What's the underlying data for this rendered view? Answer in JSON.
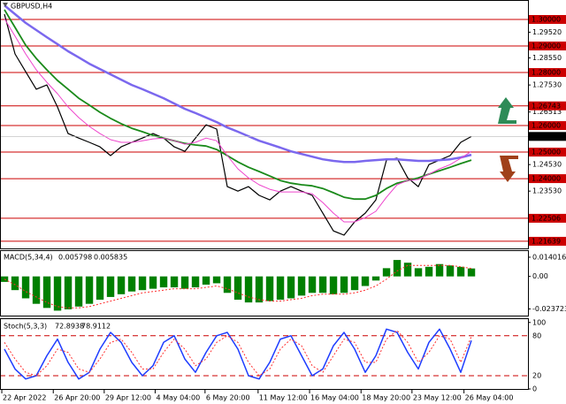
{
  "chart_data": [
    {
      "type": "line",
      "title": "GBPUSD,H4",
      "x": [
        0,
        1,
        2,
        3,
        4,
        5,
        6,
        7,
        8,
        9,
        10,
        11,
        12,
        13,
        14,
        15,
        16,
        17,
        18,
        19,
        20,
        21,
        22,
        23,
        24,
        25,
        26,
        27,
        28,
        29,
        30,
        31,
        32,
        33,
        34,
        35,
        36,
        37,
        38,
        39,
        40,
        41,
        42,
        43,
        44
      ],
      "xlim": [
        -0.42,
        49.33
      ],
      "xticks": [
        {
          "value": -0.25,
          "label": "22 Apr 2022"
        },
        {
          "value": 4.6,
          "label": "26 Apr 20:00"
        },
        {
          "value": 9.4,
          "label": "29 Apr 12:00"
        },
        {
          "value": 14.2,
          "label": "4 May 04:00"
        },
        {
          "value": 18.9,
          "label": "6 May 20:00"
        },
        {
          "value": 23.9,
          "label": "11 May 12:00"
        },
        {
          "value": 28.75,
          "label": "16 May 04:00"
        },
        {
          "value": 33.6,
          "label": "18 May 20:00"
        },
        {
          "value": 38.4,
          "label": "23 May 12:00"
        },
        {
          "value": 43.3,
          "label": "26 May 04:00"
        }
      ],
      "ylim": [
        1.2137,
        1.307
      ],
      "yticks": [
        {
          "value": 1.2952,
          "label": "1.29520"
        },
        {
          "value": 1.2855,
          "label": "1.28550"
        },
        {
          "value": 1.2753,
          "label": "1.27530"
        },
        {
          "value": 1.26513,
          "label": "1.26513"
        },
        {
          "value": 1.2453,
          "label": "1.24530"
        },
        {
          "value": 1.2353,
          "label": "1.23530"
        }
      ],
      "levels": [
        {
          "value": 1.3,
          "label": "1.30000"
        },
        {
          "value": 1.29,
          "label": "1.29000"
        },
        {
          "value": 1.28,
          "label": "1.28000"
        },
        {
          "value": 1.26743,
          "label": "1.26743"
        },
        {
          "value": 1.26,
          "label": "1.26000"
        },
        {
          "value": 1.25,
          "label": "1.25000"
        },
        {
          "value": 1.24,
          "label": "1.24000"
        },
        {
          "value": 1.22506,
          "label": "1.22506"
        },
        {
          "value": 1.21639,
          "label": "1.21639"
        }
      ],
      "level_color": "#cc0000",
      "current_price": 1.25591,
      "series": [
        {
          "color": "#000000",
          "width": 1.2,
          "values": [
            1.302,
            1.287,
            1.2803,
            1.2737,
            1.2753,
            1.267,
            1.257,
            1.2553,
            1.2537,
            1.252,
            1.2487,
            1.252,
            1.2537,
            1.2553,
            1.257,
            1.2553,
            1.252,
            1.2503,
            1.2553,
            1.2603,
            1.2587,
            1.237,
            1.2353,
            1.237,
            1.2337,
            1.232,
            1.2353,
            1.237,
            1.2353,
            1.2337,
            1.227,
            1.2203,
            1.2187,
            1.2237,
            1.227,
            1.232,
            1.247,
            1.2477,
            1.2403,
            1.237,
            1.2453,
            1.247,
            1.2487,
            1.2537,
            1.2559
          ]
        },
        {
          "color": "#7b68ee",
          "width": 2.5,
          "values": [
            1.3053,
            1.302,
            1.2987,
            1.296,
            1.2933,
            1.2907,
            1.288,
            1.2857,
            1.2833,
            1.2813,
            1.2793,
            1.2773,
            1.2753,
            1.2737,
            1.272,
            1.2703,
            1.2683,
            1.2663,
            1.2647,
            1.263,
            1.2613,
            1.2593,
            1.2577,
            1.256,
            1.2543,
            1.253,
            1.2517,
            1.2503,
            1.2493,
            1.2483,
            1.2473,
            1.2467,
            1.2463,
            1.2463,
            1.2467,
            1.247,
            1.2473,
            1.2473,
            1.247,
            1.2467,
            1.2467,
            1.247,
            1.2473,
            1.248,
            1.249
          ]
        },
        {
          "color": "#1a8a1a",
          "width": 1.8,
          "values": [
            1.3037,
            1.297,
            1.2903,
            1.2853,
            1.281,
            1.277,
            1.2737,
            1.2703,
            1.2677,
            1.265,
            1.2627,
            1.2607,
            1.259,
            1.2577,
            1.2563,
            1.2553,
            1.2543,
            1.2533,
            1.2527,
            1.2523,
            1.251,
            1.2487,
            1.2463,
            1.2443,
            1.2427,
            1.241,
            1.2393,
            1.2383,
            1.2377,
            1.2373,
            1.2363,
            1.2347,
            1.233,
            1.2323,
            1.2323,
            1.2337,
            1.2363,
            1.2383,
            1.2393,
            1.2403,
            1.2417,
            1.243,
            1.2443,
            1.2457,
            1.247
          ]
        },
        {
          "color": "#ee44cc",
          "width": 1,
          "values": [
            1.3003,
            1.2937,
            1.287,
            1.281,
            1.2763,
            1.272,
            1.267,
            1.263,
            1.2597,
            1.257,
            1.2547,
            1.2537,
            1.2537,
            1.2543,
            1.255,
            1.2553,
            1.2543,
            1.253,
            1.2537,
            1.2553,
            1.2543,
            1.2487,
            1.2437,
            1.2403,
            1.2377,
            1.236,
            1.235,
            1.235,
            1.235,
            1.2343,
            1.231,
            1.227,
            1.2237,
            1.2237,
            1.2253,
            1.2277,
            1.233,
            1.2377,
            1.2393,
            1.2397,
            1.2417,
            1.2437,
            1.2453,
            1.2477,
            1.2503
          ]
        }
      ]
    },
    {
      "type": "bar",
      "title": "MACD(5,34,4)",
      "last_values": [
        0.005798,
        0.005835
      ],
      "ylim": [
        -0.0286,
        0.0185
      ],
      "yticks": [
        0.014016,
        {
          "value": 0,
          "label": "0.00"
        },
        -0.023723
      ],
      "series": [
        {
          "kind": "bar",
          "color": "#008000",
          "values": [
            -0.004,
            -0.01,
            -0.016,
            -0.02,
            -0.023,
            -0.025,
            -0.024,
            -0.022,
            -0.02,
            -0.017,
            -0.015,
            -0.013,
            -0.011,
            -0.01,
            -0.009,
            -0.008,
            -0.008,
            -0.009,
            -0.008,
            -0.006,
            -0.005,
            -0.012,
            -0.017,
            -0.019,
            -0.019,
            -0.018,
            -0.017,
            -0.016,
            -0.014,
            -0.012,
            -0.012,
            -0.013,
            -0.012,
            -0.01,
            -0.007,
            -0.003,
            0.006,
            0.012,
            0.01,
            0.006,
            0.007,
            0.009,
            0.008,
            0.007,
            0.0058
          ]
        },
        {
          "kind": "line",
          "color": "#ff3030",
          "dash": true,
          "values": [
            -0.002,
            -0.006,
            -0.011,
            -0.015,
            -0.019,
            -0.022,
            -0.023,
            -0.023,
            -0.022,
            -0.02,
            -0.018,
            -0.016,
            -0.014,
            -0.012,
            -0.011,
            -0.01,
            -0.009,
            -0.009,
            -0.009,
            -0.008,
            -0.007,
            -0.009,
            -0.012,
            -0.015,
            -0.017,
            -0.018,
            -0.018,
            -0.017,
            -0.016,
            -0.014,
            -0.013,
            -0.013,
            -0.013,
            -0.012,
            -0.01,
            -0.007,
            -0.002,
            0.004,
            0.008,
            0.008,
            0.008,
            0.008,
            0.008,
            0.007,
            0.0058
          ]
        }
      ]
    },
    {
      "type": "line",
      "title": "Stoch(5,3,3)",
      "last_values": [
        72.8938,
        78.9112
      ],
      "ylim": [
        0,
        105
      ],
      "yticks": [
        100,
        0
      ],
      "levels": [
        80,
        20
      ],
      "level_color": "#cc0000",
      "series": [
        {
          "kind": "line",
          "color": "#1e3cff",
          "width": 1.5,
          "values": [
            60,
            30,
            15,
            20,
            50,
            75,
            40,
            15,
            25,
            60,
            85,
            70,
            40,
            20,
            35,
            70,
            80,
            45,
            25,
            55,
            80,
            85,
            60,
            20,
            15,
            40,
            75,
            80,
            50,
            20,
            30,
            65,
            85,
            60,
            25,
            50,
            90,
            85,
            55,
            30,
            70,
            90,
            60,
            25,
            72.9
          ]
        },
        {
          "kind": "line",
          "color": "#ff3030",
          "dash": true,
          "width": 1,
          "values": [
            70,
            45,
            25,
            20,
            35,
            60,
            55,
            30,
            25,
            45,
            70,
            75,
            55,
            30,
            30,
            55,
            75,
            60,
            35,
            45,
            70,
            80,
            70,
            40,
            20,
            30,
            60,
            75,
            65,
            35,
            25,
            50,
            75,
            70,
            40,
            40,
            75,
            88,
            70,
            40,
            55,
            80,
            75,
            40,
            78.9
          ]
        }
      ]
    }
  ]
}
